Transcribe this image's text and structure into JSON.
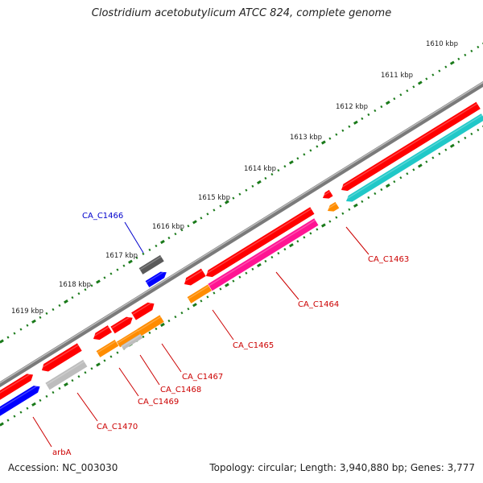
{
  "title": "Clostridium acetobutylicum ATCC 824, complete genome",
  "footer": {
    "accession": "Accession: NC_003030",
    "summary": "Topology: circular; Length: 3,940,880 bp; Genes: 3,777"
  },
  "colors": {
    "backbone": "#808080",
    "ticks": "#1a7a1a",
    "red": "#ff0000",
    "blue": "#0000ff",
    "cyan": "#20c8c8",
    "orange": "#ff8c00",
    "magenta": "#ff1493",
    "gray": "#bdbdbd",
    "dark_gray": "#5a5a5a",
    "label_red": "#cc0000",
    "label_blue": "#0000cc"
  },
  "scale_labels": [
    "1610 kbp",
    "1611 kbp",
    "1612 kbp",
    "1613 kbp",
    "1614 kbp",
    "1615 kbp",
    "1616 kbp",
    "1617 kbp",
    "1618 kbp",
    "1619 kbp"
  ],
  "gene_labels": [
    "CA_C1463",
    "CA_C1464",
    "CA_C1465",
    "CA_C1466",
    "CA_C1467",
    "CA_C1468",
    "CA_C1469",
    "CA_C1470",
    "arbA"
  ]
}
